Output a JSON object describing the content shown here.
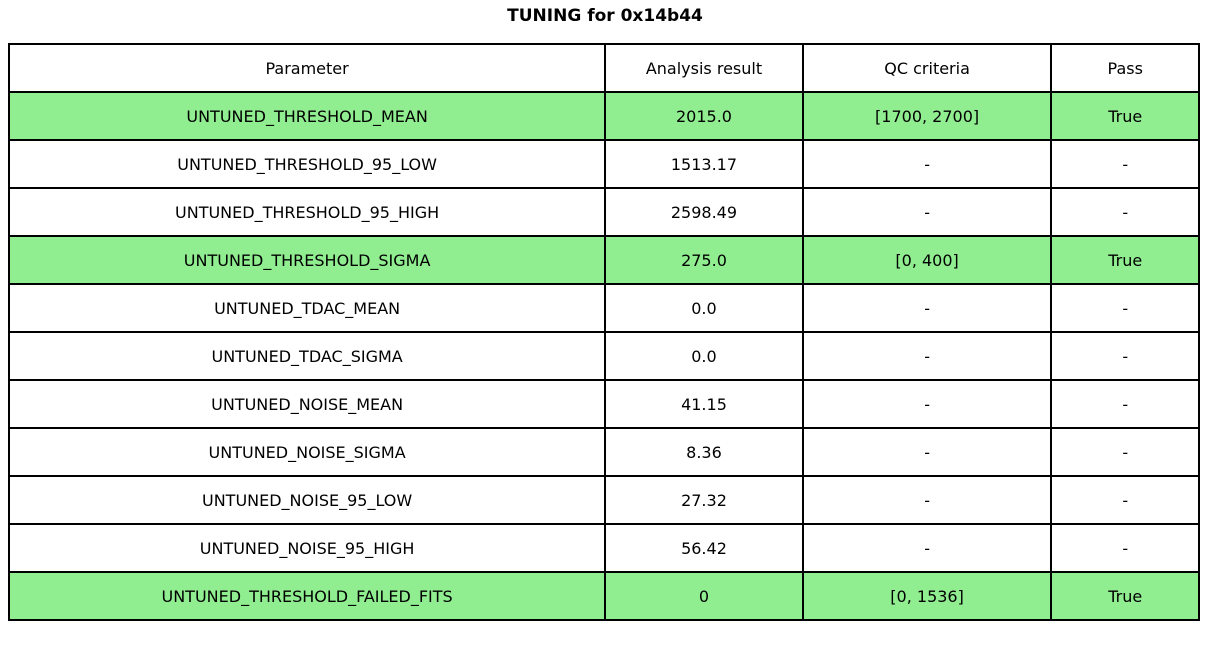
{
  "title": "TUNING for 0x14b44",
  "colors": {
    "highlight_green": "#90EE90",
    "border": "#000000",
    "background": "#ffffff",
    "text": "#000000"
  },
  "table": {
    "columns": [
      "Parameter",
      "Analysis result",
      "QC criteria",
      "Pass"
    ],
    "rows": [
      {
        "parameter": "UNTUNED_THRESHOLD_MEAN",
        "result": "2015.0",
        "qc": "[1700, 2700]",
        "pass": "True",
        "highlight": true
      },
      {
        "parameter": "UNTUNED_THRESHOLD_95_LOW",
        "result": "1513.17",
        "qc": "-",
        "pass": "-",
        "highlight": false
      },
      {
        "parameter": "UNTUNED_THRESHOLD_95_HIGH",
        "result": "2598.49",
        "qc": "-",
        "pass": "-",
        "highlight": false
      },
      {
        "parameter": "UNTUNED_THRESHOLD_SIGMA",
        "result": "275.0",
        "qc": "[0, 400]",
        "pass": "True",
        "highlight": true
      },
      {
        "parameter": "UNTUNED_TDAC_MEAN",
        "result": "0.0",
        "qc": "-",
        "pass": "-",
        "highlight": false
      },
      {
        "parameter": "UNTUNED_TDAC_SIGMA",
        "result": "0.0",
        "qc": "-",
        "pass": "-",
        "highlight": false
      },
      {
        "parameter": "UNTUNED_NOISE_MEAN",
        "result": "41.15",
        "qc": "-",
        "pass": "-",
        "highlight": false
      },
      {
        "parameter": "UNTUNED_NOISE_SIGMA",
        "result": "8.36",
        "qc": "-",
        "pass": "-",
        "highlight": false
      },
      {
        "parameter": "UNTUNED_NOISE_95_LOW",
        "result": "27.32",
        "qc": "-",
        "pass": "-",
        "highlight": false
      },
      {
        "parameter": "UNTUNED_NOISE_95_HIGH",
        "result": "56.42",
        "qc": "-",
        "pass": "-",
        "highlight": false
      },
      {
        "parameter": "UNTUNED_THRESHOLD_FAILED_FITS",
        "result": "0",
        "qc": "[0, 1536]",
        "pass": "True",
        "highlight": true
      }
    ]
  },
  "chart_data": {
    "type": "table",
    "title": "TUNING for 0x14b44",
    "columns": [
      "Parameter",
      "Analysis result",
      "QC criteria",
      "Pass"
    ],
    "rows": [
      [
        "UNTUNED_THRESHOLD_MEAN",
        "2015.0",
        "[1700, 2700]",
        "True"
      ],
      [
        "UNTUNED_THRESHOLD_95_LOW",
        "1513.17",
        "-",
        "-"
      ],
      [
        "UNTUNED_THRESHOLD_95_HIGH",
        "2598.49",
        "-",
        "-"
      ],
      [
        "UNTUNED_THRESHOLD_SIGMA",
        "275.0",
        "[0, 400]",
        "True"
      ],
      [
        "UNTUNED_TDAC_MEAN",
        "0.0",
        "-",
        "-"
      ],
      [
        "UNTUNED_TDAC_SIGMA",
        "0.0",
        "-",
        "-"
      ],
      [
        "UNTUNED_NOISE_MEAN",
        "41.15",
        "-",
        "-"
      ],
      [
        "UNTUNED_NOISE_SIGMA",
        "8.36",
        "-",
        "-"
      ],
      [
        "UNTUNED_NOISE_95_LOW",
        "27.32",
        "-",
        "-"
      ],
      [
        "UNTUNED_NOISE_95_HIGH",
        "56.42",
        "-",
        "-"
      ],
      [
        "UNTUNED_THRESHOLD_FAILED_FITS",
        "0",
        "[0, 1536]",
        "True"
      ]
    ],
    "highlighted_rows": [
      0,
      3,
      10
    ],
    "highlight_color": "#90EE90",
    "layout": "single table figure, black 2px grid borders, all cells center-aligned"
  }
}
